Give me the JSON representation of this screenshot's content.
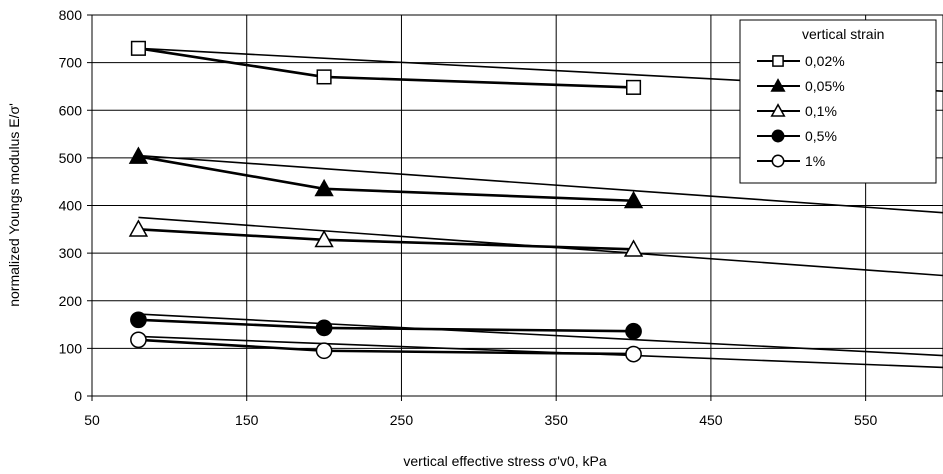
{
  "chart_data": {
    "type": "scatter",
    "xlabel": "vertical effective stress σ'v0, kPa",
    "ylabel": "normalized Youngs modulus E/σ'",
    "xlim": [
      50,
      600
    ],
    "ylim": [
      0,
      800
    ],
    "xticks": [
      "50",
      "150",
      "250",
      "350",
      "450",
      "550"
    ],
    "yticks": [
      "0",
      "100",
      "200",
      "300",
      "400",
      "500",
      "600",
      "700",
      "800"
    ],
    "grid": true,
    "legend": {
      "title": "vertical strain",
      "placement": "top-right"
    },
    "series": [
      {
        "name": "0,02%",
        "marker": "square-open",
        "points": [
          [
            80,
            730
          ],
          [
            200,
            670
          ],
          [
            400,
            648
          ]
        ],
        "fit": [
          [
            80,
            730
          ],
          [
            600,
            640
          ]
        ]
      },
      {
        "name": "0,05%",
        "marker": "triangle-filled",
        "points": [
          [
            80,
            503
          ],
          [
            200,
            435
          ],
          [
            400,
            410
          ]
        ],
        "fit": [
          [
            80,
            505
          ],
          [
            600,
            385
          ]
        ]
      },
      {
        "name": "0,1%",
        "marker": "triangle-open",
        "points": [
          [
            80,
            350
          ],
          [
            200,
            328
          ],
          [
            400,
            308
          ]
        ],
        "fit": [
          [
            80,
            375
          ],
          [
            600,
            253
          ]
        ]
      },
      {
        "name": "0,5%",
        "marker": "circle-filled",
        "points": [
          [
            80,
            160
          ],
          [
            200,
            143
          ],
          [
            400,
            136
          ]
        ],
        "fit": [
          [
            80,
            172
          ],
          [
            600,
            85
          ]
        ]
      },
      {
        "name": "1%",
        "marker": "circle-open",
        "points": [
          [
            80,
            118
          ],
          [
            200,
            95
          ],
          [
            400,
            88
          ]
        ],
        "fit": [
          [
            80,
            125
          ],
          [
            600,
            60
          ]
        ]
      }
    ]
  }
}
